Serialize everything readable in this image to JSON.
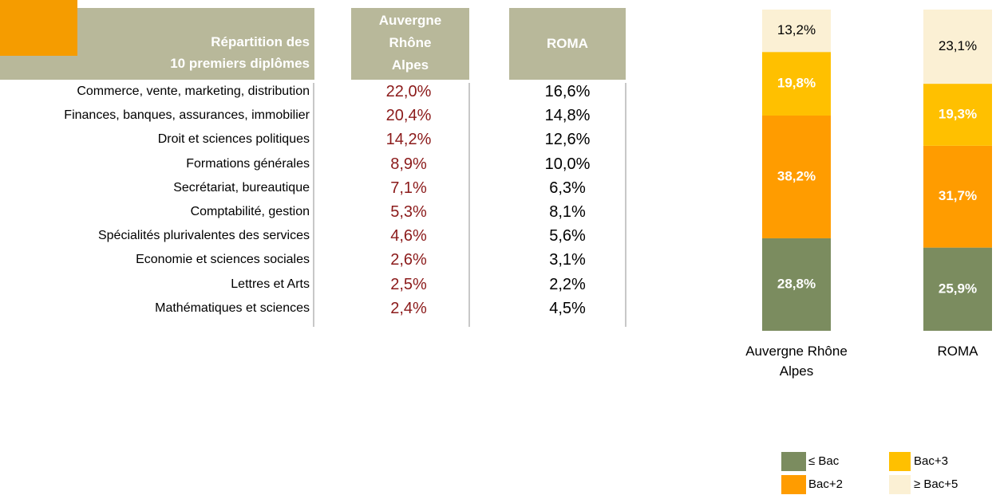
{
  "table": {
    "header": [
      "Répartition des",
      "10 premiers diplômes"
    ],
    "columns": [
      "Auvergne Rhône Alpes",
      "ROMA"
    ],
    "rows": [
      [
        "Commerce, vente, marketing, distribution",
        "22,0%",
        "16,6%"
      ],
      [
        "Finances, banques, assurances, immobilier",
        "20,4%",
        "14,8%"
      ],
      [
        "Droit et sciences politiques",
        "14,2%",
        "12,6%"
      ],
      [
        "Formations générales",
        "8,9%",
        "10,0%"
      ],
      [
        "Secrétariat, bureautique",
        "7,1%",
        "6,3%"
      ],
      [
        "Comptabilité, gestion",
        "5,3%",
        "8,1%"
      ],
      [
        "Spécialités plurivalentes des services",
        "4,6%",
        "5,6%"
      ],
      [
        "Economie et sciences sociales",
        "2,6%",
        "3,1%"
      ],
      [
        "Lettres et Arts",
        "2,5%",
        "2,2%"
      ],
      [
        "Mathématiques et sciences",
        "2,4%",
        "4,5%"
      ]
    ]
  },
  "chart_data": {
    "type": "stacked_bar",
    "categories": [
      "Auvergne Rhône Alpes",
      "ROMA"
    ],
    "ylim": [
      0,
      100
    ],
    "series": [
      {
        "name": "≤ Bac",
        "color": "#7b8c5f",
        "label_color": "#ffffff",
        "label_weight": "bold",
        "values": [
          28.8,
          25.9
        ],
        "value_labels": [
          "28,8%",
          "25,9%"
        ]
      },
      {
        "name": "Bac+2",
        "color": "#ff9c00",
        "label_color": "#ffffff",
        "label_weight": "bold",
        "values": [
          38.2,
          31.7
        ],
        "value_labels": [
          "38,2%",
          "31,7%"
        ]
      },
      {
        "name": "Bac+3",
        "color": "#ffc000",
        "label_color": "#ffffff",
        "label_weight": "bold",
        "values": [
          19.8,
          19.3
        ],
        "value_labels": [
          "19,8%",
          "19,3%"
        ]
      },
      {
        "name": "≥ Bac+5",
        "color": "#fbf0d4",
        "label_color": "#000000",
        "label_weight": "normal",
        "values": [
          13.2,
          23.1
        ],
        "value_labels": [
          "13,2%",
          "23,1%"
        ]
      }
    ]
  }
}
